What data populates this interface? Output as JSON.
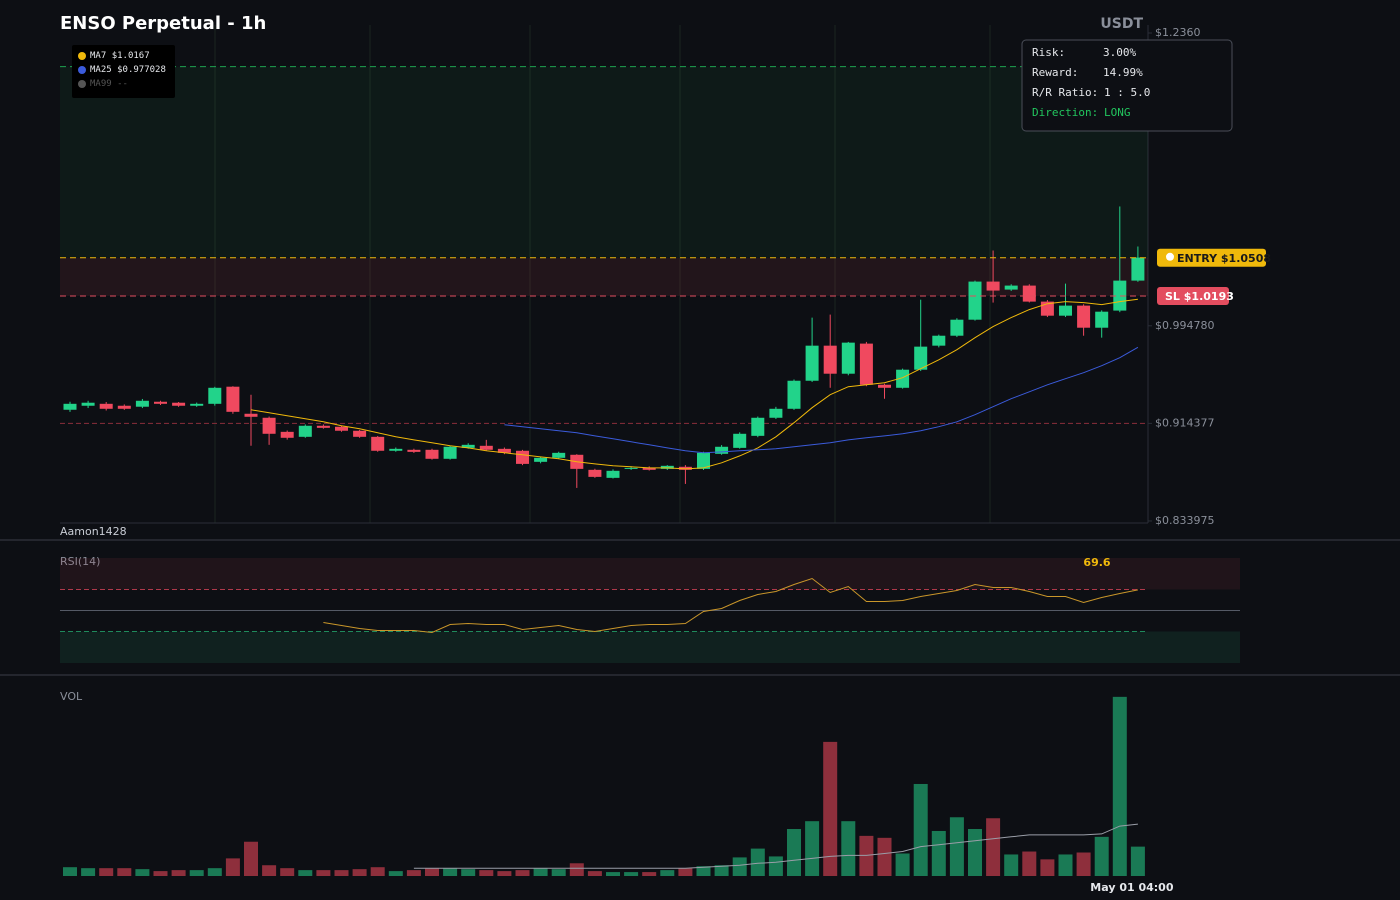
{
  "chart_data": [
    {
      "type": "candlestick",
      "title": "ENSO Perpetual - 1h",
      "quote": "USDT",
      "watermark": "Aamon1428",
      "ylim": [
        0.8323,
        1.2426
      ],
      "yticks": [
        {
          "value": 1.236,
          "label": "$1.2360"
        },
        {
          "value": 0.99478,
          "label": "$0.994780"
        },
        {
          "value": 0.914377,
          "label": "$0.914377"
        },
        {
          "value": 0.833975,
          "label": "$0.833975"
        }
      ],
      "up_color": "#22d38a",
      "down_color": "#f0495f",
      "candles": [
        [
          0.9256,
          0.9322,
          0.9239,
          0.9305
        ],
        [
          0.9289,
          0.933,
          0.927,
          0.9314
        ],
        [
          0.9305,
          0.932,
          0.925,
          0.9264
        ],
        [
          0.9289,
          0.93,
          0.9255,
          0.9264
        ],
        [
          0.9281,
          0.9345,
          0.927,
          0.933
        ],
        [
          0.9322,
          0.933,
          0.9295,
          0.9305
        ],
        [
          0.9314,
          0.932,
          0.928,
          0.9289
        ],
        [
          0.9289,
          0.9315,
          0.928,
          0.9305
        ],
        [
          0.9305,
          0.9445,
          0.929,
          0.9437
        ],
        [
          0.9446,
          0.945,
          0.9223,
          0.9239
        ],
        [
          0.9223,
          0.938,
          0.8959,
          0.9198
        ],
        [
          0.919,
          0.92,
          0.8967,
          0.9058
        ],
        [
          0.9074,
          0.9085,
          0.901,
          0.9025
        ],
        [
          0.9033,
          0.9135,
          0.9025,
          0.9124
        ],
        [
          0.9124,
          0.9135,
          0.91,
          0.9107
        ],
        [
          0.9116,
          0.9125,
          0.9075,
          0.9083
        ],
        [
          0.9083,
          0.909,
          0.9025,
          0.9033
        ],
        [
          0.9033,
          0.904,
          0.891,
          0.8918
        ],
        [
          0.8918,
          0.8945,
          0.891,
          0.8934
        ],
        [
          0.8926,
          0.8935,
          0.89,
          0.8909
        ],
        [
          0.8926,
          0.8935,
          0.8845,
          0.8852
        ],
        [
          0.8852,
          0.896,
          0.8845,
          0.8951
        ],
        [
          0.8942,
          0.898,
          0.8935,
          0.8967
        ],
        [
          0.8959,
          0.9008,
          0.8918,
          0.8926
        ],
        [
          0.8934,
          0.8945,
          0.889,
          0.8901
        ],
        [
          0.8918,
          0.8925,
          0.88,
          0.881
        ],
        [
          0.8827,
          0.887,
          0.8815,
          0.886
        ],
        [
          0.886,
          0.891,
          0.885,
          0.8901
        ],
        [
          0.8885,
          0.889,
          0.8612,
          0.8769
        ],
        [
          0.8761,
          0.877,
          0.8695,
          0.8703
        ],
        [
          0.8695,
          0.8765,
          0.869,
          0.8753
        ],
        [
          0.8769,
          0.879,
          0.876,
          0.8777
        ],
        [
          0.8777,
          0.879,
          0.8755,
          0.8761
        ],
        [
          0.8769,
          0.88,
          0.876,
          0.8794
        ],
        [
          0.8786,
          0.88,
          0.8645,
          0.8761
        ],
        [
          0.8769,
          0.891,
          0.876,
          0.8901
        ],
        [
          0.8893,
          0.8965,
          0.8885,
          0.8951
        ],
        [
          0.8942,
          0.907,
          0.8935,
          0.9058
        ],
        [
          0.9041,
          0.92,
          0.903,
          0.919
        ],
        [
          0.919,
          0.928,
          0.918,
          0.9264
        ],
        [
          0.9264,
          0.9505,
          0.9255,
          0.9495
        ],
        [
          0.9495,
          1.0015,
          0.9485,
          0.9784
        ],
        [
          0.9784,
          1.004,
          0.9437,
          0.9553
        ],
        [
          0.9553,
          0.9815,
          0.954,
          0.9809
        ],
        [
          0.9801,
          0.9815,
          0.945,
          0.9462
        ],
        [
          0.9462,
          0.947,
          0.9347,
          0.9437
        ],
        [
          0.9437,
          0.9595,
          0.943,
          0.9586
        ],
        [
          0.9586,
          1.0163,
          0.9575,
          0.9776
        ],
        [
          0.9784,
          0.9875,
          0.977,
          0.9866
        ],
        [
          0.9866,
          1.001,
          0.9855,
          0.9998
        ],
        [
          0.9998,
          1.032,
          0.999,
          1.0312
        ],
        [
          1.0312,
          1.0568,
          1.0139,
          1.0238
        ],
        [
          1.0246,
          1.029,
          1.0235,
          1.0279
        ],
        [
          1.0279,
          1.029,
          1.014,
          1.0147
        ],
        [
          1.0147,
          1.016,
          1.002,
          1.0031
        ],
        [
          1.0031,
          1.0295,
          1.002,
          1.0114
        ],
        [
          1.0114,
          1.0125,
          0.9866,
          0.9932
        ],
        [
          0.9932,
          1.0075,
          0.985,
          1.0064
        ],
        [
          1.0073,
          1.0931,
          1.006,
          1.032
        ],
        [
          1.032,
          1.0601,
          1.031,
          1.051
        ]
      ],
      "series": [
        {
          "name": "MA7",
          "color": "#f0b90b",
          "value_label": "$1.0167",
          "values": [
            null,
            null,
            null,
            null,
            null,
            null,
            null,
            null,
            null,
            null,
            0.9256,
            0.9231,
            0.9206,
            0.9182,
            0.9157,
            0.9124,
            0.9099,
            0.9066,
            0.9033,
            0.9008,
            0.8984,
            0.8959,
            0.8942,
            0.8918,
            0.8901,
            0.8885,
            0.8868,
            0.8852,
            0.8827,
            0.881,
            0.8794,
            0.8786,
            0.8777,
            0.8777,
            0.8769,
            0.8777,
            0.8819,
            0.8876,
            0.8942,
            0.9033,
            0.9149,
            0.9273,
            0.938,
            0.9446,
            0.9462,
            0.9479,
            0.952,
            0.9594,
            0.9668,
            0.9751,
            0.985,
            0.9941,
            1.0015,
            1.0081,
            1.013,
            1.0147,
            1.0139,
            1.0122,
            1.0147,
            1.0167
          ]
        },
        {
          "name": "MA25",
          "color": "#3b5bdb",
          "value_label": "$0.977028",
          "values": [
            null,
            null,
            null,
            null,
            null,
            null,
            null,
            null,
            null,
            null,
            null,
            null,
            null,
            null,
            null,
            null,
            null,
            null,
            null,
            null,
            null,
            null,
            null,
            null,
            0.9132,
            0.9116,
            0.9099,
            0.9083,
            0.9066,
            0.9041,
            0.9017,
            0.8992,
            0.8967,
            0.8942,
            0.8918,
            0.8901,
            0.8909,
            0.8918,
            0.8926,
            0.8934,
            0.8951,
            0.8967,
            0.8984,
            0.9008,
            0.9025,
            0.9041,
            0.9058,
            0.9083,
            0.9116,
            0.9157,
            0.9215,
            0.9281,
            0.9347,
            0.9404,
            0.9462,
            0.9512,
            0.9561,
            0.9619,
            0.9685,
            0.977028
          ]
        },
        {
          "name": "MA99",
          "color": "#555555",
          "value_label": "--"
        }
      ],
      "entry": {
        "label": "ENTRY",
        "value_label": "$1.0508",
        "value": 1.0508,
        "color": "#f0b90b"
      },
      "stop_loss": {
        "label": "SL",
        "value_label": "$1.0193",
        "value": 1.0193,
        "color": "#e34d5f"
      },
      "take_profit": {
        "value": 1.2083,
        "color": "#22c55e"
      },
      "price_lines": [
        {
          "value": 0.914377,
          "color": "#8b2e3b"
        }
      ],
      "trade_info": [
        {
          "label": "Risk:",
          "value": "3.00%"
        },
        {
          "label": "Reward:",
          "value": "14.99%"
        },
        {
          "label": "R/R Ratio:",
          "value": "1 : 5.0"
        },
        {
          "label": "Direction:",
          "value": "LONG",
          "color": "#22c55e"
        }
      ]
    },
    {
      "type": "line",
      "title": "RSI(14)",
      "ylim": [
        0,
        100
      ],
      "reference_lines": [
        {
          "value": 70,
          "color": "#b0394b"
        },
        {
          "value": 50,
          "color": "#555a66"
        },
        {
          "value": 30,
          "color": "#1f8a5c"
        }
      ],
      "series": [
        {
          "color": "#c9962a",
          "value_label": "69.6",
          "values": [
            null,
            null,
            null,
            null,
            null,
            null,
            null,
            null,
            null,
            null,
            null,
            null,
            null,
            null,
            38.6,
            35.7,
            32.9,
            31.0,
            31.0,
            31.0,
            29.0,
            36.7,
            37.6,
            36.7,
            36.7,
            31.9,
            33.8,
            35.7,
            31.9,
            30.0,
            32.9,
            35.7,
            36.7,
            36.7,
            37.6,
            49.0,
            51.9,
            59.5,
            65.2,
            68.1,
            74.8,
            80.5,
            67.1,
            72.9,
            58.6,
            58.6,
            59.5,
            63.3,
            66.2,
            69.0,
            74.8,
            71.9,
            71.9,
            68.1,
            63.3,
            63.3,
            57.6,
            62.4,
            66.2,
            69.6
          ]
        }
      ]
    },
    {
      "type": "bar",
      "title": "VOL",
      "ylim": [
        0,
        190
      ],
      "categories": [
        null,
        null,
        null,
        null,
        null,
        null,
        null,
        null,
        null,
        null,
        null,
        null,
        null,
        null,
        null,
        null,
        null,
        null,
        null,
        null,
        null,
        null,
        null,
        null,
        null,
        null,
        null,
        null,
        null,
        null,
        null,
        null,
        null,
        null,
        null,
        null,
        null,
        null,
        null,
        null,
        null,
        null,
        null,
        null,
        null,
        null,
        null,
        null,
        null,
        null,
        null,
        null,
        null,
        null,
        null,
        null,
        null,
        null,
        null,
        "May 01 04:00"
      ],
      "up_color": "#1a7a55",
      "down_color": "#8e2f3c",
      "values": [
        9,
        8,
        8,
        8,
        7,
        5,
        6,
        6,
        8,
        18,
        35,
        11,
        8,
        6,
        6,
        6,
        7,
        9,
        5,
        6,
        8,
        8,
        7,
        6,
        5,
        6,
        8,
        7,
        13,
        5,
        4,
        4,
        4,
        6,
        8,
        10,
        11,
        19,
        28,
        20,
        48,
        56,
        137,
        56,
        41,
        39,
        23,
        94,
        46,
        60,
        48,
        59,
        22,
        25,
        17,
        22,
        24,
        40,
        183,
        30
      ],
      "ma": {
        "color": "#9a9ea8",
        "values": [
          null,
          null,
          null,
          null,
          null,
          null,
          null,
          null,
          null,
          null,
          null,
          null,
          null,
          null,
          null,
          null,
          null,
          null,
          null,
          8,
          8,
          8,
          8,
          8,
          8,
          8,
          8,
          8,
          8,
          8,
          8,
          8,
          8,
          8,
          8,
          9,
          10,
          11,
          13,
          14,
          16,
          18,
          20,
          21,
          21,
          23,
          25,
          30,
          32,
          34,
          36,
          38,
          40,
          42,
          42,
          42,
          42,
          43,
          51,
          53
        ]
      }
    }
  ]
}
